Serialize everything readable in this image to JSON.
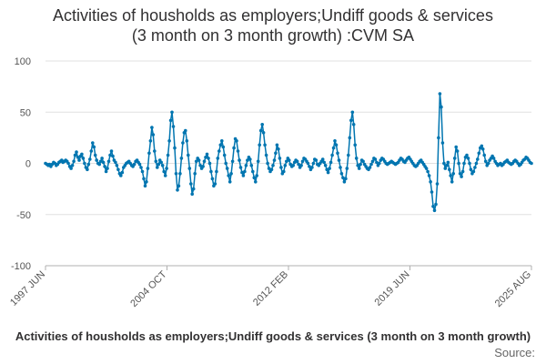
{
  "chart_data": {
    "type": "line",
    "title": "Activities of housholds as employers;Undiff goods & services",
    "subtitle": "(3 month on 3 month growth) :CVM SA",
    "xlabel": "",
    "ylabel": "",
    "ylim": [
      -100,
      100
    ],
    "yticks": [
      -100,
      -50,
      0,
      50,
      100
    ],
    "xticks": [
      "1997 JUN",
      "2004 OCT",
      "2012 FEB",
      "2019 JUN",
      "2025 AUG"
    ],
    "xrange": [
      "1997 JUN",
      "2025 AUG"
    ],
    "grid": true,
    "legend_position": "bottom",
    "series": [
      {
        "name": "Activities of housholds as employers;Undiff goods & services (3 month on 3 month growth)",
        "color": "#0075b0",
        "values": [
          0,
          -1,
          -2,
          -1,
          -3,
          -1,
          1,
          0,
          -2,
          -1,
          1,
          2,
          3,
          1,
          2,
          3,
          2,
          0,
          -3,
          -5,
          -2,
          2,
          8,
          11,
          6,
          3,
          7,
          9,
          5,
          0,
          -4,
          -6,
          -1,
          4,
          12,
          20,
          16,
          8,
          3,
          0,
          -1,
          2,
          5,
          1,
          -3,
          -8,
          -5,
          2,
          8,
          12,
          7,
          3,
          1,
          -2,
          -6,
          -10,
          -12,
          -9,
          -4,
          -2,
          0,
          1,
          2,
          0,
          -2,
          -3,
          -1,
          2,
          3,
          1,
          -1,
          -4,
          -8,
          -15,
          -22,
          -18,
          -5,
          10,
          22,
          35,
          28,
          12,
          2,
          -4,
          -1,
          3,
          1,
          -2,
          -8,
          -12,
          -5,
          8,
          22,
          42,
          50,
          36,
          15,
          -10,
          -26,
          -22,
          -10,
          5,
          20,
          30,
          32,
          22,
          8,
          -5,
          -20,
          -30,
          -25,
          -10,
          2,
          5,
          3,
          -2,
          -5,
          -3,
          2,
          6,
          9,
          5,
          0,
          -8,
          -15,
          -22,
          -20,
          -8,
          5,
          12,
          18,
          22,
          16,
          8,
          0,
          -5,
          -12,
          -18,
          -10,
          2,
          15,
          24,
          22,
          12,
          3,
          -4,
          -9,
          -12,
          -8,
          -2,
          3,
          6,
          4,
          -2,
          -8,
          -14,
          -18,
          -12,
          2,
          18,
          32,
          38,
          30,
          18,
          8,
          0,
          -5,
          -8,
          -6,
          -2,
          3,
          10,
          18,
          14,
          5,
          -4,
          -10,
          -8,
          -2,
          2,
          5,
          3,
          -1,
          -3,
          -2,
          1,
          3,
          2,
          -1,
          -4,
          -2,
          2,
          5,
          4,
          2,
          0,
          -3,
          -6,
          -4,
          0,
          4,
          3,
          -1,
          -2,
          0,
          2,
          4,
          1,
          -2,
          -6,
          -9,
          -5,
          1,
          8,
          15,
          22,
          18,
          10,
          3,
          -4,
          -10,
          -14,
          -18,
          -15,
          -5,
          8,
          25,
          42,
          50,
          38,
          18,
          5,
          -2,
          -5,
          -1,
          3,
          2,
          -1,
          -3,
          -5,
          -6,
          -4,
          -1,
          2,
          5,
          4,
          1,
          -2,
          0,
          3,
          5,
          4,
          2,
          0,
          -1,
          0,
          1,
          2,
          1,
          0,
          -1,
          0,
          1,
          3,
          5,
          4,
          2,
          1,
          3,
          5,
          6,
          4,
          2,
          0,
          -2,
          -3,
          -2,
          0,
          2,
          3,
          1,
          -1,
          -3,
          -5,
          -8,
          -12,
          -18,
          -28,
          -42,
          -46,
          -40,
          -20,
          25,
          68,
          55,
          20,
          0,
          -5,
          -2,
          1,
          -6,
          -12,
          -18,
          -10,
          5,
          16,
          12,
          0,
          -10,
          -13,
          -8,
          0,
          6,
          8,
          5,
          0,
          -6,
          -10,
          -8,
          -4,
          0,
          4,
          10,
          15,
          17,
          14,
          8,
          2,
          -2,
          0,
          3,
          5,
          7,
          5,
          2,
          0,
          -2,
          -1,
          0,
          -2,
          -1,
          1,
          2,
          3,
          1,
          0,
          -1,
          0,
          2,
          3,
          2,
          0,
          -2,
          -1,
          1,
          3,
          4,
          6,
          5,
          3,
          1,
          0
        ]
      }
    ]
  },
  "legend": {
    "label": "Activities of housholds as employers;Undiff goods & services (3 month on 3 month growth)"
  },
  "source_label": "Source:"
}
